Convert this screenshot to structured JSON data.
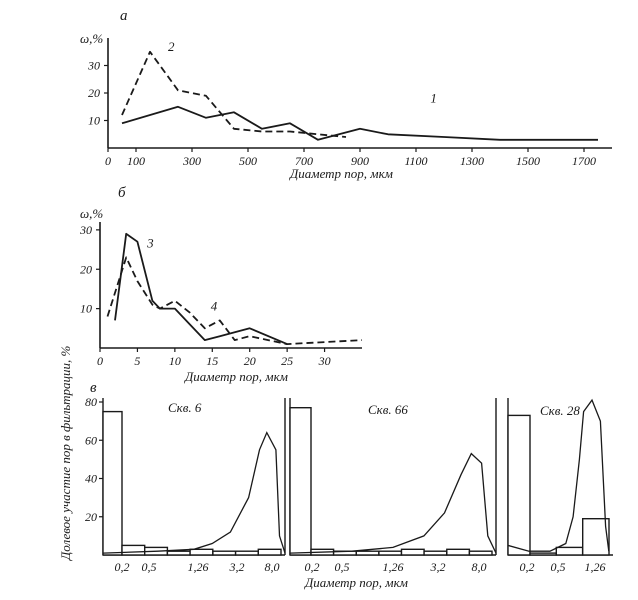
{
  "chart_data": [
    {
      "panel": "а",
      "type": "line",
      "ylabel": "ω,%",
      "xlabel": "Диаметр пор, мкм",
      "xlim": [
        0,
        1800
      ],
      "ylim": [
        0,
        40
      ],
      "xticks": [
        "0",
        "100",
        "300",
        "500",
        "700",
        "900",
        "1100",
        "1300",
        "1500",
        "1700"
      ],
      "xtick_values": [
        0,
        100,
        300,
        500,
        700,
        900,
        1100,
        1300,
        1500,
        1700
      ],
      "yticks": [
        "10",
        "20",
        "30"
      ],
      "ytick_values": [
        10,
        20,
        30
      ],
      "series": [
        {
          "name": "1",
          "style": "solid",
          "x": [
            50,
            250,
            350,
            450,
            550,
            650,
            750,
            900,
            1000,
            1200,
            1400,
            1600,
            1750
          ],
          "y": [
            9,
            15,
            11,
            13,
            7,
            9,
            3,
            7,
            5,
            4,
            3,
            3,
            3
          ]
        },
        {
          "name": "2",
          "style": "dashed",
          "x": [
            50,
            150,
            250,
            350,
            450,
            550,
            650,
            750,
            850
          ],
          "y": [
            12,
            35,
            21,
            19,
            7,
            6,
            6,
            5,
            4
          ]
        }
      ]
    },
    {
      "panel": "б",
      "type": "line",
      "ylabel": "ω,%",
      "xlabel": "Диаметр пор, мкм",
      "xlim": [
        0,
        35
      ],
      "ylim": [
        0,
        32
      ],
      "xticks": [
        "0",
        "5",
        "10",
        "15",
        "20",
        "25",
        "30"
      ],
      "xtick_values": [
        0,
        5,
        10,
        15,
        20,
        25,
        30
      ],
      "yticks": [
        "10",
        "20",
        "30"
      ],
      "ytick_values": [
        10,
        20,
        30
      ],
      "series": [
        {
          "name": "3",
          "style": "solid",
          "x": [
            2,
            3.5,
            5,
            7,
            8,
            10,
            12,
            14,
            16,
            18,
            20,
            25
          ],
          "y": [
            7,
            29,
            27,
            12,
            10,
            10,
            6,
            2,
            3,
            4,
            5,
            1
          ]
        },
        {
          "name": "4",
          "style": "dashed",
          "x": [
            1,
            3.5,
            5,
            7,
            8,
            10,
            12,
            14,
            16,
            18,
            20,
            25,
            35
          ],
          "y": [
            8,
            23,
            17,
            11,
            10,
            12,
            9,
            5,
            7,
            2,
            3,
            1,
            2
          ]
        }
      ]
    },
    {
      "panel": "в",
      "type": "bar",
      "ylabel": "Долевое участие пор в фильтрации, %",
      "xlabel": "Диаметр пор, мкм",
      "ylim": [
        0,
        80
      ],
      "yticks": [
        "20",
        "40",
        "60",
        "80"
      ],
      "ytick_values": [
        20,
        40,
        60,
        80
      ],
      "subplots": [
        {
          "title": "Скв. 6",
          "ticks": [
            "0,2",
            "0,5",
            "1,26",
            "3,2",
            "8,0"
          ],
          "bins": [
            "<0,2",
            "0,2–0,5",
            "0,5–1,26",
            "1,26–3,2",
            "3,2–8,0",
            "1,26–3,2",
            "3,2–8,0",
            "8,0"
          ],
          "values": [
            75,
            5,
            4,
            2,
            3,
            2,
            2,
            3
          ],
          "curve": [
            [
              0.0,
              1
            ],
            [
              0.3,
              2
            ],
            [
              0.5,
              3
            ],
            [
              0.6,
              6
            ],
            [
              0.7,
              12
            ],
            [
              0.8,
              30
            ],
            [
              0.86,
              55
            ],
            [
              0.9,
              64
            ],
            [
              0.95,
              55
            ],
            [
              0.97,
              10
            ],
            [
              1.0,
              1
            ]
          ]
        },
        {
          "title": "Скв. 66",
          "ticks": [
            "0,2",
            "0,5",
            "1,26",
            "3,2",
            "8,0"
          ],
          "bins": [
            "<0,2",
            "0,2–0,5",
            "0,5–1,26",
            "1,26–3,2",
            "3,2–8,0",
            "1,26–3,2",
            "3,2–8,0",
            "8,0",
            "8,0+"
          ],
          "values": [
            77,
            3,
            2,
            2,
            2,
            3,
            2,
            3,
            2
          ],
          "curve": [
            [
              0.0,
              1
            ],
            [
              0.3,
              2
            ],
            [
              0.5,
              4
            ],
            [
              0.65,
              10
            ],
            [
              0.75,
              22
            ],
            [
              0.83,
              42
            ],
            [
              0.88,
              53
            ],
            [
              0.93,
              48
            ],
            [
              0.96,
              10
            ],
            [
              1.0,
              1
            ]
          ]
        },
        {
          "title": "Скв. 28",
          "ticks": [
            "0,2",
            "0,5",
            "1,26"
          ],
          "bins": [
            "<0,2",
            "0,2–0,5",
            "0,5–1,26",
            "1,26"
          ],
          "values": [
            73,
            1,
            4,
            19
          ],
          "curve": [
            [
              0.0,
              5
            ],
            [
              0.2,
              2
            ],
            [
              0.4,
              2
            ],
            [
              0.55,
              6
            ],
            [
              0.62,
              20
            ],
            [
              0.68,
              50
            ],
            [
              0.72,
              75
            ],
            [
              0.8,
              81
            ],
            [
              0.88,
              70
            ],
            [
              0.93,
              15
            ],
            [
              0.96,
              2
            ]
          ]
        }
      ]
    }
  ]
}
